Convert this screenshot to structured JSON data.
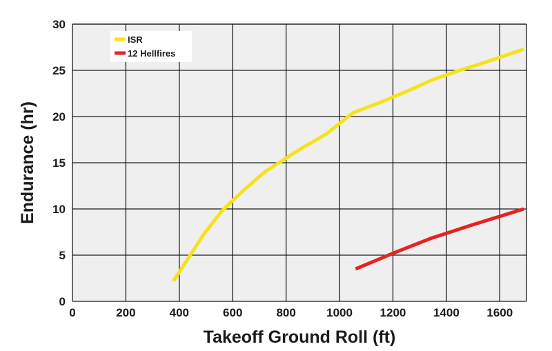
{
  "chart_data": {
    "type": "line",
    "title": "",
    "xlabel": "Takeoff Ground Roll (ft)",
    "ylabel": "Endurance (hr)",
    "xlim": [
      0,
      1700
    ],
    "ylim": [
      0,
      30
    ],
    "x_ticks": [
      0,
      200,
      400,
      600,
      800,
      1000,
      1200,
      1400,
      1600
    ],
    "y_ticks": [
      0,
      5,
      10,
      15,
      20,
      25,
      30
    ],
    "grid": true,
    "legend_position": "top-left",
    "plot_background": "#efefef",
    "grid_color": "#1a1a1a",
    "series": [
      {
        "name": "ISR",
        "color": "#f5e21b",
        "points": [
          [
            378,
            2.2
          ],
          [
            430,
            4.5
          ],
          [
            490,
            7.2
          ],
          [
            560,
            9.8
          ],
          [
            640,
            12.0
          ],
          [
            720,
            14.0
          ],
          [
            800,
            15.5
          ],
          [
            860,
            16.6
          ],
          [
            950,
            18.1
          ],
          [
            1050,
            20.4
          ],
          [
            1150,
            21.5
          ],
          [
            1250,
            22.7
          ],
          [
            1350,
            24.0
          ],
          [
            1450,
            25.0
          ],
          [
            1550,
            25.9
          ],
          [
            1690,
            27.3
          ]
        ]
      },
      {
        "name": "12 Hellfires",
        "color": "#e52421",
        "points": [
          [
            1060,
            3.5
          ],
          [
            1200,
            5.2
          ],
          [
            1340,
            6.8
          ],
          [
            1500,
            8.3
          ],
          [
            1690,
            10.0
          ]
        ]
      }
    ]
  }
}
